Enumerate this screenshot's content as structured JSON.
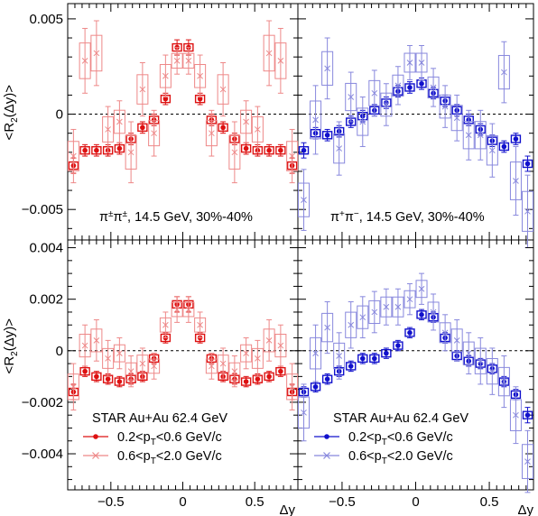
{
  "chart_data": [
    {
      "type": "scatter",
      "panel": "top-left",
      "ylabel": "<R2(Δy)>",
      "xlabel": "",
      "xlim": [
        -0.8,
        0.8
      ],
      "ylim": [
        -0.0066,
        0.0058
      ],
      "yticks": [
        -0.005,
        0,
        0.005
      ],
      "ytick_labels": [
        "−0.005",
        "0",
        "0.005"
      ],
      "xticks": [],
      "xtick_labels": [],
      "annotation": "π±π±, 14.5 GeV, 30%-40%",
      "annotation_parts": {
        "a": "π",
        "b": "±",
        "c": "π",
        "d": "±",
        "rest": ", 14.5 GeV, 30%-40%"
      },
      "series": [
        {
          "name": "0.2<pT<0.6 GeV/c",
          "color": "#dd1111",
          "x": [
            -0.76,
            -0.68,
            -0.6,
            -0.52,
            -0.44,
            -0.36,
            -0.28,
            -0.2,
            -0.12,
            -0.04,
            0.04,
            0.12,
            0.2,
            0.28,
            0.36,
            0.44,
            0.52,
            0.6,
            0.68,
            0.76
          ],
          "y": [
            -0.0027,
            -0.0019,
            -0.0019,
            -0.0019,
            -0.0018,
            -0.0013,
            -0.0007,
            -0.0003,
            0.0008,
            0.0035,
            0.0035,
            0.0008,
            -0.0003,
            -0.0007,
            -0.0013,
            -0.0018,
            -0.0019,
            -0.0019,
            -0.0019,
            -0.0027
          ],
          "err": [
            0.0004,
            0.0003,
            0.0003,
            0.0003,
            0.0003,
            0.0003,
            0.0003,
            0.0003,
            0.0003,
            0.0004,
            0.0004,
            0.0003,
            0.0003,
            0.0003,
            0.0003,
            0.0003,
            0.0003,
            0.0003,
            0.0003,
            0.0004
          ]
        },
        {
          "name": "0.6<pT<2.0 GeV/c",
          "color": "#ee8888",
          "x": [
            -0.76,
            -0.68,
            -0.6,
            -0.52,
            -0.44,
            -0.36,
            -0.28,
            -0.2,
            -0.12,
            -0.04,
            0.04,
            0.12,
            0.2,
            0.28,
            0.36,
            0.44,
            0.52,
            0.6,
            0.68,
            0.76
          ],
          "y": [
            -0.0022,
            0.0028,
            0.0032,
            -0.0008,
            -0.0004,
            -0.002,
            0.0013,
            -0.001,
            0.002,
            0.0028,
            0.0028,
            0.002,
            -0.001,
            0.0013,
            -0.002,
            -0.0004,
            -0.0008,
            0.0032,
            0.0028,
            -0.0022
          ],
          "err": [
            0.0014,
            0.0017,
            0.0017,
            0.0012,
            0.0011,
            0.0016,
            0.0014,
            0.0012,
            0.0011,
            0.0007,
            0.0007,
            0.0011,
            0.0012,
            0.0014,
            0.0016,
            0.0011,
            0.0012,
            0.0017,
            0.0017,
            0.0014
          ]
        }
      ]
    },
    {
      "type": "scatter",
      "panel": "top-right",
      "xlim": [
        -0.8,
        0.8
      ],
      "ylim": [
        -0.0066,
        0.0058
      ],
      "xticks": [],
      "xtick_labels": [],
      "annotation": "π+π−, 14.5 GeV, 30%-40%",
      "annotation_parts": {
        "a": "π",
        "b": "+",
        "c": "π",
        "d": "−",
        "rest": ", 14.5 GeV, 30%-40%"
      },
      "series": [
        {
          "name": "0.2<pT<0.6 GeV/c",
          "color": "#1111cc",
          "x": [
            -0.76,
            -0.68,
            -0.6,
            -0.52,
            -0.44,
            -0.36,
            -0.28,
            -0.2,
            -0.12,
            -0.04,
            0.04,
            0.12,
            0.2,
            0.28,
            0.36,
            0.44,
            0.52,
            0.6,
            0.68,
            0.76
          ],
          "y": [
            -0.0019,
            -0.001,
            -0.0011,
            -0.0009,
            -0.0004,
            -0.0001,
            0.0002,
            0.0006,
            0.0012,
            0.0014,
            0.0016,
            0.0011,
            0.0007,
            0.0002,
            -0.0003,
            -0.0008,
            -0.0014,
            -0.0017,
            -0.0013,
            -0.0026
          ],
          "err": [
            0.0004,
            0.0003,
            0.0003,
            0.0003,
            0.0003,
            0.0003,
            0.0003,
            0.0003,
            0.0003,
            0.0003,
            0.0003,
            0.0003,
            0.0003,
            0.0003,
            0.0003,
            0.0003,
            0.0003,
            0.0003,
            0.0003,
            0.0004
          ]
        },
        {
          "name": "0.6<pT<2.0 GeV/c",
          "color": "#8888dd",
          "x": [
            -0.76,
            -0.68,
            -0.6,
            -0.52,
            -0.44,
            -0.36,
            -0.28,
            -0.2,
            -0.12,
            -0.04,
            0.04,
            0.12,
            0.2,
            0.28,
            0.36,
            0.44,
            0.52,
            0.6,
            0.68,
            0.76
          ],
          "y": [
            -0.0045,
            -0.0003,
            0.0024,
            -0.0018,
            0.0009,
            -0.0004,
            0.0011,
            0.0005,
            0.0015,
            0.0027,
            0.0027,
            0.0014,
            0.0004,
            -0.0002,
            -0.0011,
            -0.0011,
            -0.0019,
            0.0022,
            -0.0035,
            -0.0051
          ],
          "err": [
            0.0016,
            0.0018,
            0.0016,
            0.0014,
            0.0013,
            0.0013,
            0.0012,
            0.0011,
            0.001,
            0.0009,
            0.0009,
            0.001,
            0.0011,
            0.0012,
            0.0013,
            0.0013,
            0.0014,
            0.0016,
            0.0018,
            0.0019
          ]
        }
      ]
    },
    {
      "type": "scatter",
      "panel": "bottom-left",
      "ylabel": "<R2(Δy)>",
      "xlabel": "Δy",
      "xlim": [
        -0.8,
        0.8
      ],
      "ylim": [
        -0.0054,
        0.0043
      ],
      "yticks": [
        -0.004,
        -0.002,
        0,
        0.002,
        0.004
      ],
      "ytick_labels": [
        "−0.004",
        "−0.002",
        "0",
        "0.002",
        "0.004"
      ],
      "xticks": [
        -0.5,
        0,
        0.5
      ],
      "xtick_labels": [
        "−0.5",
        "0",
        "0.5"
      ],
      "annotation": "STAR Au+Au 62.4 GeV",
      "legend": [
        "0.2<pT<0.6 GeV/c",
        "0.6<pT<2.0 GeV/c"
      ],
      "legend_parts": [
        {
          "pre": "0.2<p",
          "sub": "T",
          "post": "<0.6 GeV/c"
        },
        {
          "pre": "0.6<p",
          "sub": "T",
          "post": "<2.0 GeV/c"
        }
      ],
      "series": [
        {
          "name": "0.2<pT<0.6 GeV/c",
          "color": "#dd1111",
          "x": [
            -0.76,
            -0.68,
            -0.6,
            -0.52,
            -0.44,
            -0.36,
            -0.28,
            -0.2,
            -0.12,
            -0.04,
            0.04,
            0.12,
            0.2,
            0.28,
            0.36,
            0.44,
            0.52,
            0.6,
            0.68,
            0.76
          ],
          "y": [
            -0.0016,
            -0.0008,
            -0.001,
            -0.0011,
            -0.0012,
            -0.0011,
            -0.001,
            -0.0003,
            0.0005,
            0.0018,
            0.0018,
            0.0005,
            -0.0003,
            -0.001,
            -0.0011,
            -0.0012,
            -0.0011,
            -0.001,
            -0.0008,
            -0.0016
          ],
          "err": [
            0.0003,
            0.0002,
            0.0002,
            0.0002,
            0.0002,
            0.0002,
            0.0002,
            0.0002,
            0.0002,
            0.0003,
            0.0003,
            0.0002,
            0.0002,
            0.0002,
            0.0002,
            0.0002,
            0.0002,
            0.0002,
            0.0002,
            0.0003
          ]
        },
        {
          "name": "0.6<pT<2.0 GeV/c",
          "color": "#ee8888",
          "x": [
            -0.76,
            -0.68,
            -0.6,
            -0.52,
            -0.44,
            -0.36,
            -0.28,
            -0.2,
            -0.12,
            -0.04,
            0.04,
            0.12,
            0.2,
            0.28,
            0.36,
            0.44,
            0.52,
            0.6,
            0.68,
            0.76
          ],
          "y": [
            -0.0014,
            0.0002,
            0.0004,
            -0.0003,
            -0.0001,
            -0.0008,
            -0.0005,
            -0.0006,
            0.001,
            0.0016,
            0.0016,
            0.001,
            -0.0006,
            -0.0005,
            -0.0008,
            -0.0001,
            -0.0003,
            0.0004,
            0.0002,
            -0.0014
          ],
          "err": [
            0.0009,
            0.0008,
            0.0008,
            0.0007,
            0.0006,
            0.0006,
            0.0006,
            0.0005,
            0.0005,
            0.0005,
            0.0005,
            0.0005,
            0.0005,
            0.0006,
            0.0006,
            0.0006,
            0.0007,
            0.0008,
            0.0008,
            0.0009
          ]
        }
      ]
    },
    {
      "type": "scatter",
      "panel": "bottom-right",
      "xlabel": "Δy",
      "xlim": [
        -0.8,
        0.8
      ],
      "ylim": [
        -0.0054,
        0.0043
      ],
      "xticks": [
        -0.5,
        0,
        0.5
      ],
      "xtick_labels": [
        "−0.5",
        "0",
        "0.5"
      ],
      "annotation": "STAR Au+Au 62.4 GeV",
      "legend": [
        "0.2<pT<0.6 GeV/c",
        "0.6<pT<2.0 GeV/c"
      ],
      "legend_parts": [
        {
          "pre": "0.2<p",
          "sub": "T",
          "post": "<0.6 GeV/c"
        },
        {
          "pre": "0.6<p",
          "sub": "T",
          "post": "<2.0 GeV/c"
        }
      ],
      "series": [
        {
          "name": "0.2<pT<0.6 GeV/c",
          "color": "#1111cc",
          "x": [
            -0.76,
            -0.68,
            -0.6,
            -0.52,
            -0.44,
            -0.36,
            -0.28,
            -0.2,
            -0.12,
            -0.04,
            0.04,
            0.12,
            0.2,
            0.28,
            0.36,
            0.44,
            0.52,
            0.6,
            0.68,
            0.76
          ],
          "y": [
            -0.0016,
            -0.0014,
            -0.0011,
            -0.0008,
            -0.0006,
            -0.0003,
            -0.0003,
            -0.0001,
            0.0002,
            0.0007,
            0.0014,
            0.0013,
            0.0005,
            -0.0002,
            -0.0004,
            -0.0005,
            -0.0007,
            -0.0012,
            -0.0017,
            -0.0025
          ],
          "err": [
            0.0002,
            0.0002,
            0.0002,
            0.0002,
            0.0002,
            0.0002,
            0.0002,
            0.0002,
            0.0002,
            0.0002,
            0.0002,
            0.0002,
            0.0002,
            0.0002,
            0.0002,
            0.0002,
            0.0002,
            0.0002,
            0.0002,
            0.0003
          ]
        },
        {
          "name": "0.6<pT<2.0 GeV/c",
          "color": "#8888dd",
          "x": [
            -0.76,
            -0.68,
            -0.6,
            -0.52,
            -0.44,
            -0.36,
            -0.28,
            -0.2,
            -0.12,
            -0.04,
            0.04,
            0.12,
            0.2,
            0.28,
            0.36,
            0.44,
            0.52,
            0.6,
            0.68,
            0.76
          ],
          "y": [
            -0.0024,
            -0.0001,
            0.0009,
            -0.0002,
            0.001,
            0.0013,
            0.0015,
            0.0017,
            0.0017,
            0.002,
            0.0024,
            0.0015,
            0.0007,
            0.0004,
            -0.0001,
            -0.0004,
            -0.0008,
            -0.0012,
            -0.0025,
            -0.0043
          ],
          "err": [
            0.0011,
            0.0011,
            0.001,
            0.0009,
            0.0009,
            0.0008,
            0.0008,
            0.0007,
            0.0007,
            0.0006,
            0.0006,
            0.0007,
            0.0007,
            0.0008,
            0.0008,
            0.0009,
            0.0009,
            0.001,
            0.0011,
            0.0012
          ]
        }
      ]
    }
  ]
}
